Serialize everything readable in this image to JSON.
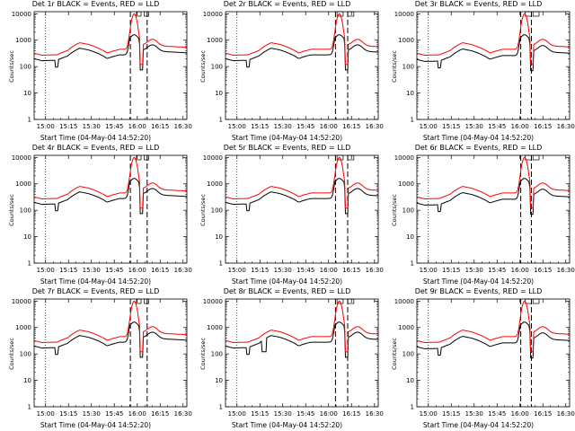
{
  "panel_common": {
    "xlabel": "Start Time (04-May-04 14:52:20)",
    "ylabel": "Counts/sec"
  },
  "colors": {
    "events": "#000000",
    "lld": "#ff0000"
  },
  "chart_data": [
    {
      "type": "line",
      "title": "Det 1r BLACK = Events, RED = LLD",
      "xlabel": "Start Time (04-May-04 14:52:20)",
      "ylabel": "Counts/sec",
      "x_ticks": [
        "15:00",
        "15:15",
        "15:30",
        "15:45",
        "16:00",
        "16:15",
        "16:30"
      ],
      "y_ticks": [
        "1",
        "10",
        "100",
        "1000",
        "10000"
      ],
      "yscale": "log",
      "ylim": [
        1,
        12000
      ],
      "x_minutes_range": [
        0,
        100
      ],
      "events_scale": 0.62,
      "glitch": false,
      "vlines": [
        {
          "x": 7.5,
          "style": "dotted"
        },
        {
          "x": 63,
          "style": "dashed"
        },
        {
          "x": 74,
          "style": "dashed"
        }
      ],
      "boxes": [
        {
          "x1": 67,
          "x2": 70
        },
        {
          "x1": 72,
          "x2": 75
        }
      ],
      "series": [
        {
          "name": "Events",
          "color": "#000000"
        },
        {
          "name": "LLD",
          "color": "#ff0000"
        }
      ]
    },
    {
      "type": "line",
      "title": "Det 2r BLACK = Events, RED = LLD",
      "xlabel": "Start Time (04-May-04 14:52:20)",
      "ylabel": "Counts/sec",
      "x_ticks": [
        "15:00",
        "15:15",
        "15:30",
        "15:45",
        "16:00",
        "16:15",
        "16:30"
      ],
      "y_ticks": [
        "1",
        "10",
        "100",
        "1000",
        "10000"
      ],
      "yscale": "log",
      "ylim": [
        1,
        12000
      ],
      "x_minutes_range": [
        0,
        100
      ],
      "events_scale": 0.62,
      "glitch": false,
      "vlines": [
        {
          "x": 7.5,
          "style": "dotted"
        },
        {
          "x": 72,
          "style": "dashed"
        },
        {
          "x": 80,
          "style": "dashed"
        }
      ],
      "boxes": [
        {
          "x1": 73,
          "x2": 77
        },
        {
          "x1": 80,
          "x2": 84
        }
      ],
      "series": [
        {
          "name": "Events",
          "color": "#000000"
        },
        {
          "name": "LLD",
          "color": "#ff0000"
        }
      ]
    },
    {
      "type": "line",
      "title": "Det 3r BLACK = Events, RED = LLD",
      "xlabel": "Start Time (04-May-04 14:52:20)",
      "ylabel": "Counts/sec",
      "x_ticks": [
        "15:00",
        "15:15",
        "15:30",
        "15:45",
        "16:00",
        "16:15",
        "16:30"
      ],
      "y_ticks": [
        "1",
        "10",
        "100",
        "1000",
        "10000"
      ],
      "yscale": "log",
      "ylim": [
        1,
        12000
      ],
      "x_minutes_range": [
        0,
        100
      ],
      "events_scale": 0.58,
      "glitch": false,
      "vlines": [
        {
          "x": 7.5,
          "style": "dotted"
        },
        {
          "x": 68,
          "style": "dashed"
        },
        {
          "x": 75,
          "style": "dashed"
        }
      ],
      "boxes": [
        {
          "x1": 71,
          "x2": 75
        },
        {
          "x1": 76,
          "x2": 80
        }
      ],
      "series": [
        {
          "name": "Events",
          "color": "#000000"
        },
        {
          "name": "LLD",
          "color": "#ff0000"
        }
      ]
    },
    {
      "type": "line",
      "title": "Det 4r BLACK = Events, RED = LLD",
      "xlabel": "Start Time (04-May-04 14:52:20)",
      "ylabel": "Counts/sec",
      "x_ticks": [
        "15:00",
        "15:15",
        "15:30",
        "15:45",
        "16:00",
        "16:15",
        "16:30"
      ],
      "y_ticks": [
        "1",
        "10",
        "100",
        "1000",
        "10000"
      ],
      "yscale": "log",
      "ylim": [
        1,
        12000
      ],
      "x_minutes_range": [
        0,
        100
      ],
      "events_scale": 0.62,
      "glitch": false,
      "vlines": [
        {
          "x": 7.5,
          "style": "dotted"
        },
        {
          "x": 63,
          "style": "dashed"
        },
        {
          "x": 74,
          "style": "dashed"
        }
      ],
      "boxes": [
        {
          "x1": 67,
          "x2": 70
        },
        {
          "x1": 72,
          "x2": 75
        }
      ],
      "series": [
        {
          "name": "Events",
          "color": "#000000"
        },
        {
          "name": "LLD",
          "color": "#ff0000"
        }
      ]
    },
    {
      "type": "line",
      "title": "Det 5r BLACK = Events, RED = LLD",
      "xlabel": "Start Time (04-May-04 14:52:20)",
      "ylabel": "Counts/sec",
      "x_ticks": [
        "15:00",
        "15:15",
        "15:30",
        "15:45",
        "16:00",
        "16:15",
        "16:30"
      ],
      "y_ticks": [
        "1",
        "10",
        "100",
        "1000",
        "10000"
      ],
      "yscale": "log",
      "ylim": [
        1,
        12000
      ],
      "x_minutes_range": [
        0,
        100
      ],
      "events_scale": 0.62,
      "glitch": false,
      "vlines": [
        {
          "x": 7.5,
          "style": "dotted"
        },
        {
          "x": 72,
          "style": "dashed"
        },
        {
          "x": 80,
          "style": "dashed"
        }
      ],
      "boxes": [
        {
          "x1": 73,
          "x2": 77
        },
        {
          "x1": 80,
          "x2": 84
        }
      ],
      "series": [
        {
          "name": "Events",
          "color": "#000000"
        },
        {
          "name": "LLD",
          "color": "#ff0000"
        }
      ]
    },
    {
      "type": "line",
      "title": "Det 6r BLACK = Events, RED = LLD",
      "xlabel": "Start Time (04-May-04 14:52:20)",
      "ylabel": "Counts/sec",
      "x_ticks": [
        "15:00",
        "15:15",
        "15:30",
        "15:45",
        "16:00",
        "16:15",
        "16:30"
      ],
      "y_ticks": [
        "1",
        "10",
        "100",
        "1000",
        "10000"
      ],
      "yscale": "log",
      "ylim": [
        1,
        12000
      ],
      "x_minutes_range": [
        0,
        100
      ],
      "events_scale": 0.58,
      "glitch": false,
      "vlines": [
        {
          "x": 7.5,
          "style": "dotted"
        },
        {
          "x": 68,
          "style": "dashed"
        },
        {
          "x": 75,
          "style": "dashed"
        }
      ],
      "boxes": [
        {
          "x1": 71,
          "x2": 75
        },
        {
          "x1": 76,
          "x2": 80
        }
      ],
      "series": [
        {
          "name": "Events",
          "color": "#000000"
        },
        {
          "name": "LLD",
          "color": "#ff0000"
        }
      ]
    },
    {
      "type": "line",
      "title": "Det 7r BLACK = Events, RED = LLD",
      "xlabel": "Start Time (04-May-04 14:52:20)",
      "ylabel": "Counts/sec",
      "x_ticks": [
        "15:00",
        "15:15",
        "15:30",
        "15:45",
        "16:00",
        "16:15",
        "16:30"
      ],
      "y_ticks": [
        "1",
        "10",
        "100",
        "1000",
        "10000"
      ],
      "yscale": "log",
      "ylim": [
        1,
        12000
      ],
      "x_minutes_range": [
        0,
        100
      ],
      "events_scale": 0.62,
      "glitch": false,
      "vlines": [
        {
          "x": 7.5,
          "style": "dotted"
        },
        {
          "x": 63,
          "style": "dashed"
        },
        {
          "x": 74,
          "style": "dashed"
        }
      ],
      "boxes": [
        {
          "x1": 67,
          "x2": 70
        },
        {
          "x1": 72,
          "x2": 75
        }
      ],
      "series": [
        {
          "name": "Events",
          "color": "#000000"
        },
        {
          "name": "LLD",
          "color": "#ff0000"
        }
      ]
    },
    {
      "type": "line",
      "title": "Det 8r BLACK = Events, RED = LLD",
      "xlabel": "Start Time (04-May-04 14:52:20)",
      "ylabel": "Counts/sec",
      "x_ticks": [
        "15:00",
        "15:15",
        "15:30",
        "15:45",
        "16:00",
        "16:15",
        "16:30"
      ],
      "y_ticks": [
        "1",
        "10",
        "100",
        "1000",
        "10000"
      ],
      "yscale": "log",
      "ylim": [
        1,
        12000
      ],
      "x_minutes_range": [
        0,
        100
      ],
      "events_scale": 0.62,
      "glitch": true,
      "vlines": [
        {
          "x": 7.5,
          "style": "dotted"
        },
        {
          "x": 72,
          "style": "dashed"
        },
        {
          "x": 80,
          "style": "dashed"
        }
      ],
      "boxes": [
        {
          "x1": 73,
          "x2": 77
        },
        {
          "x1": 80,
          "x2": 84
        }
      ],
      "series": [
        {
          "name": "Events",
          "color": "#000000"
        },
        {
          "name": "LLD",
          "color": "#ff0000"
        }
      ]
    },
    {
      "type": "line",
      "title": "Det 9r BLACK = Events, RED = LLD",
      "xlabel": "Start Time (04-May-04 14:52:20)",
      "ylabel": "Counts/sec",
      "x_ticks": [
        "15:00",
        "15:15",
        "15:30",
        "15:45",
        "16:00",
        "16:15",
        "16:30"
      ],
      "y_ticks": [
        "1",
        "10",
        "100",
        "1000",
        "10000"
      ],
      "yscale": "log",
      "ylim": [
        1,
        12000
      ],
      "x_minutes_range": [
        0,
        100
      ],
      "events_scale": 0.58,
      "glitch": false,
      "vlines": [
        {
          "x": 7.5,
          "style": "dotted"
        },
        {
          "x": 68,
          "style": "dashed"
        },
        {
          "x": 75,
          "style": "dashed"
        }
      ],
      "boxes": [
        {
          "x1": 71,
          "x2": 75
        },
        {
          "x1": 76,
          "x2": 80
        }
      ],
      "series": [
        {
          "name": "Events",
          "color": "#000000"
        },
        {
          "name": "LLD",
          "color": "#ff0000"
        }
      ]
    }
  ]
}
